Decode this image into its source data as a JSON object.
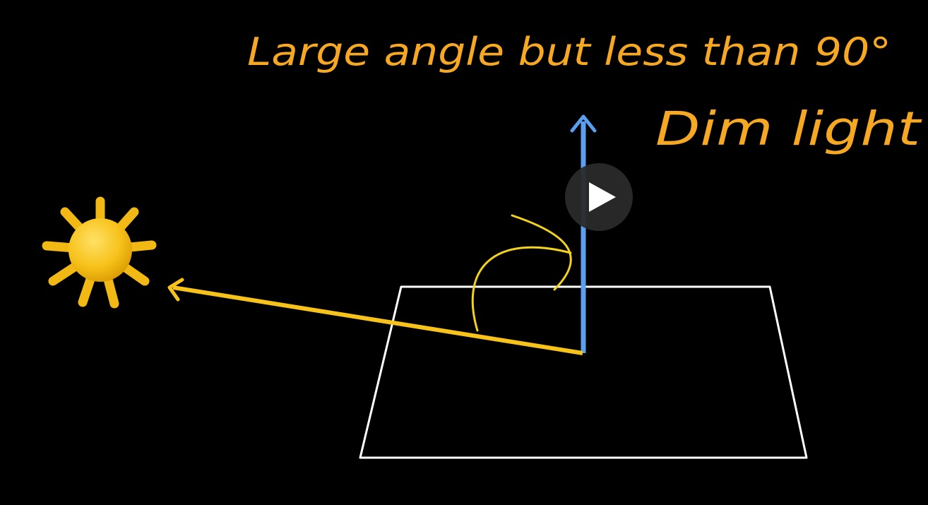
{
  "annotations": {
    "top": "Large angle but less than 90°",
    "right": "Dim light"
  }
}
